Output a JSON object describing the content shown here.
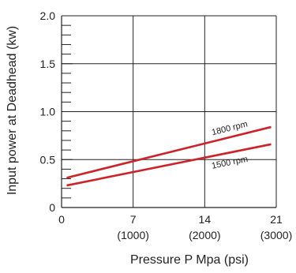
{
  "chart_data": {
    "type": "line",
    "title": "",
    "xlabel": "Pressure P Mpa (psi)",
    "ylabel": "Input power at Deadhead (kw)",
    "xlim": [
      0,
      21
    ],
    "ylim": [
      0,
      2.0
    ],
    "x_ticks": [
      {
        "value": 0,
        "label": "0",
        "sublabel": ""
      },
      {
        "value": 7,
        "label": "7",
        "sublabel": "(1000)"
      },
      {
        "value": 14,
        "label": "14",
        "sublabel": "(2000)"
      },
      {
        "value": 21,
        "label": "21",
        "sublabel": "(3000)"
      }
    ],
    "y_ticks": [
      {
        "value": 0,
        "label": "0"
      },
      {
        "value": 0.5,
        "label": "0.5"
      },
      {
        "value": 1.0,
        "label": "1.0"
      },
      {
        "value": 1.5,
        "label": "1.5"
      },
      {
        "value": 2.0,
        "label": "2.0"
      }
    ],
    "y_minor_step": 0.1,
    "grid": true,
    "line_color": "#cc2229",
    "series": [
      {
        "name": "1800 rpm",
        "x": [
          0.5,
          20.5
        ],
        "y": [
          0.31,
          0.84
        ]
      },
      {
        "name": "1500 rpm",
        "x": [
          0.5,
          20.5
        ],
        "y": [
          0.23,
          0.66
        ]
      }
    ]
  }
}
